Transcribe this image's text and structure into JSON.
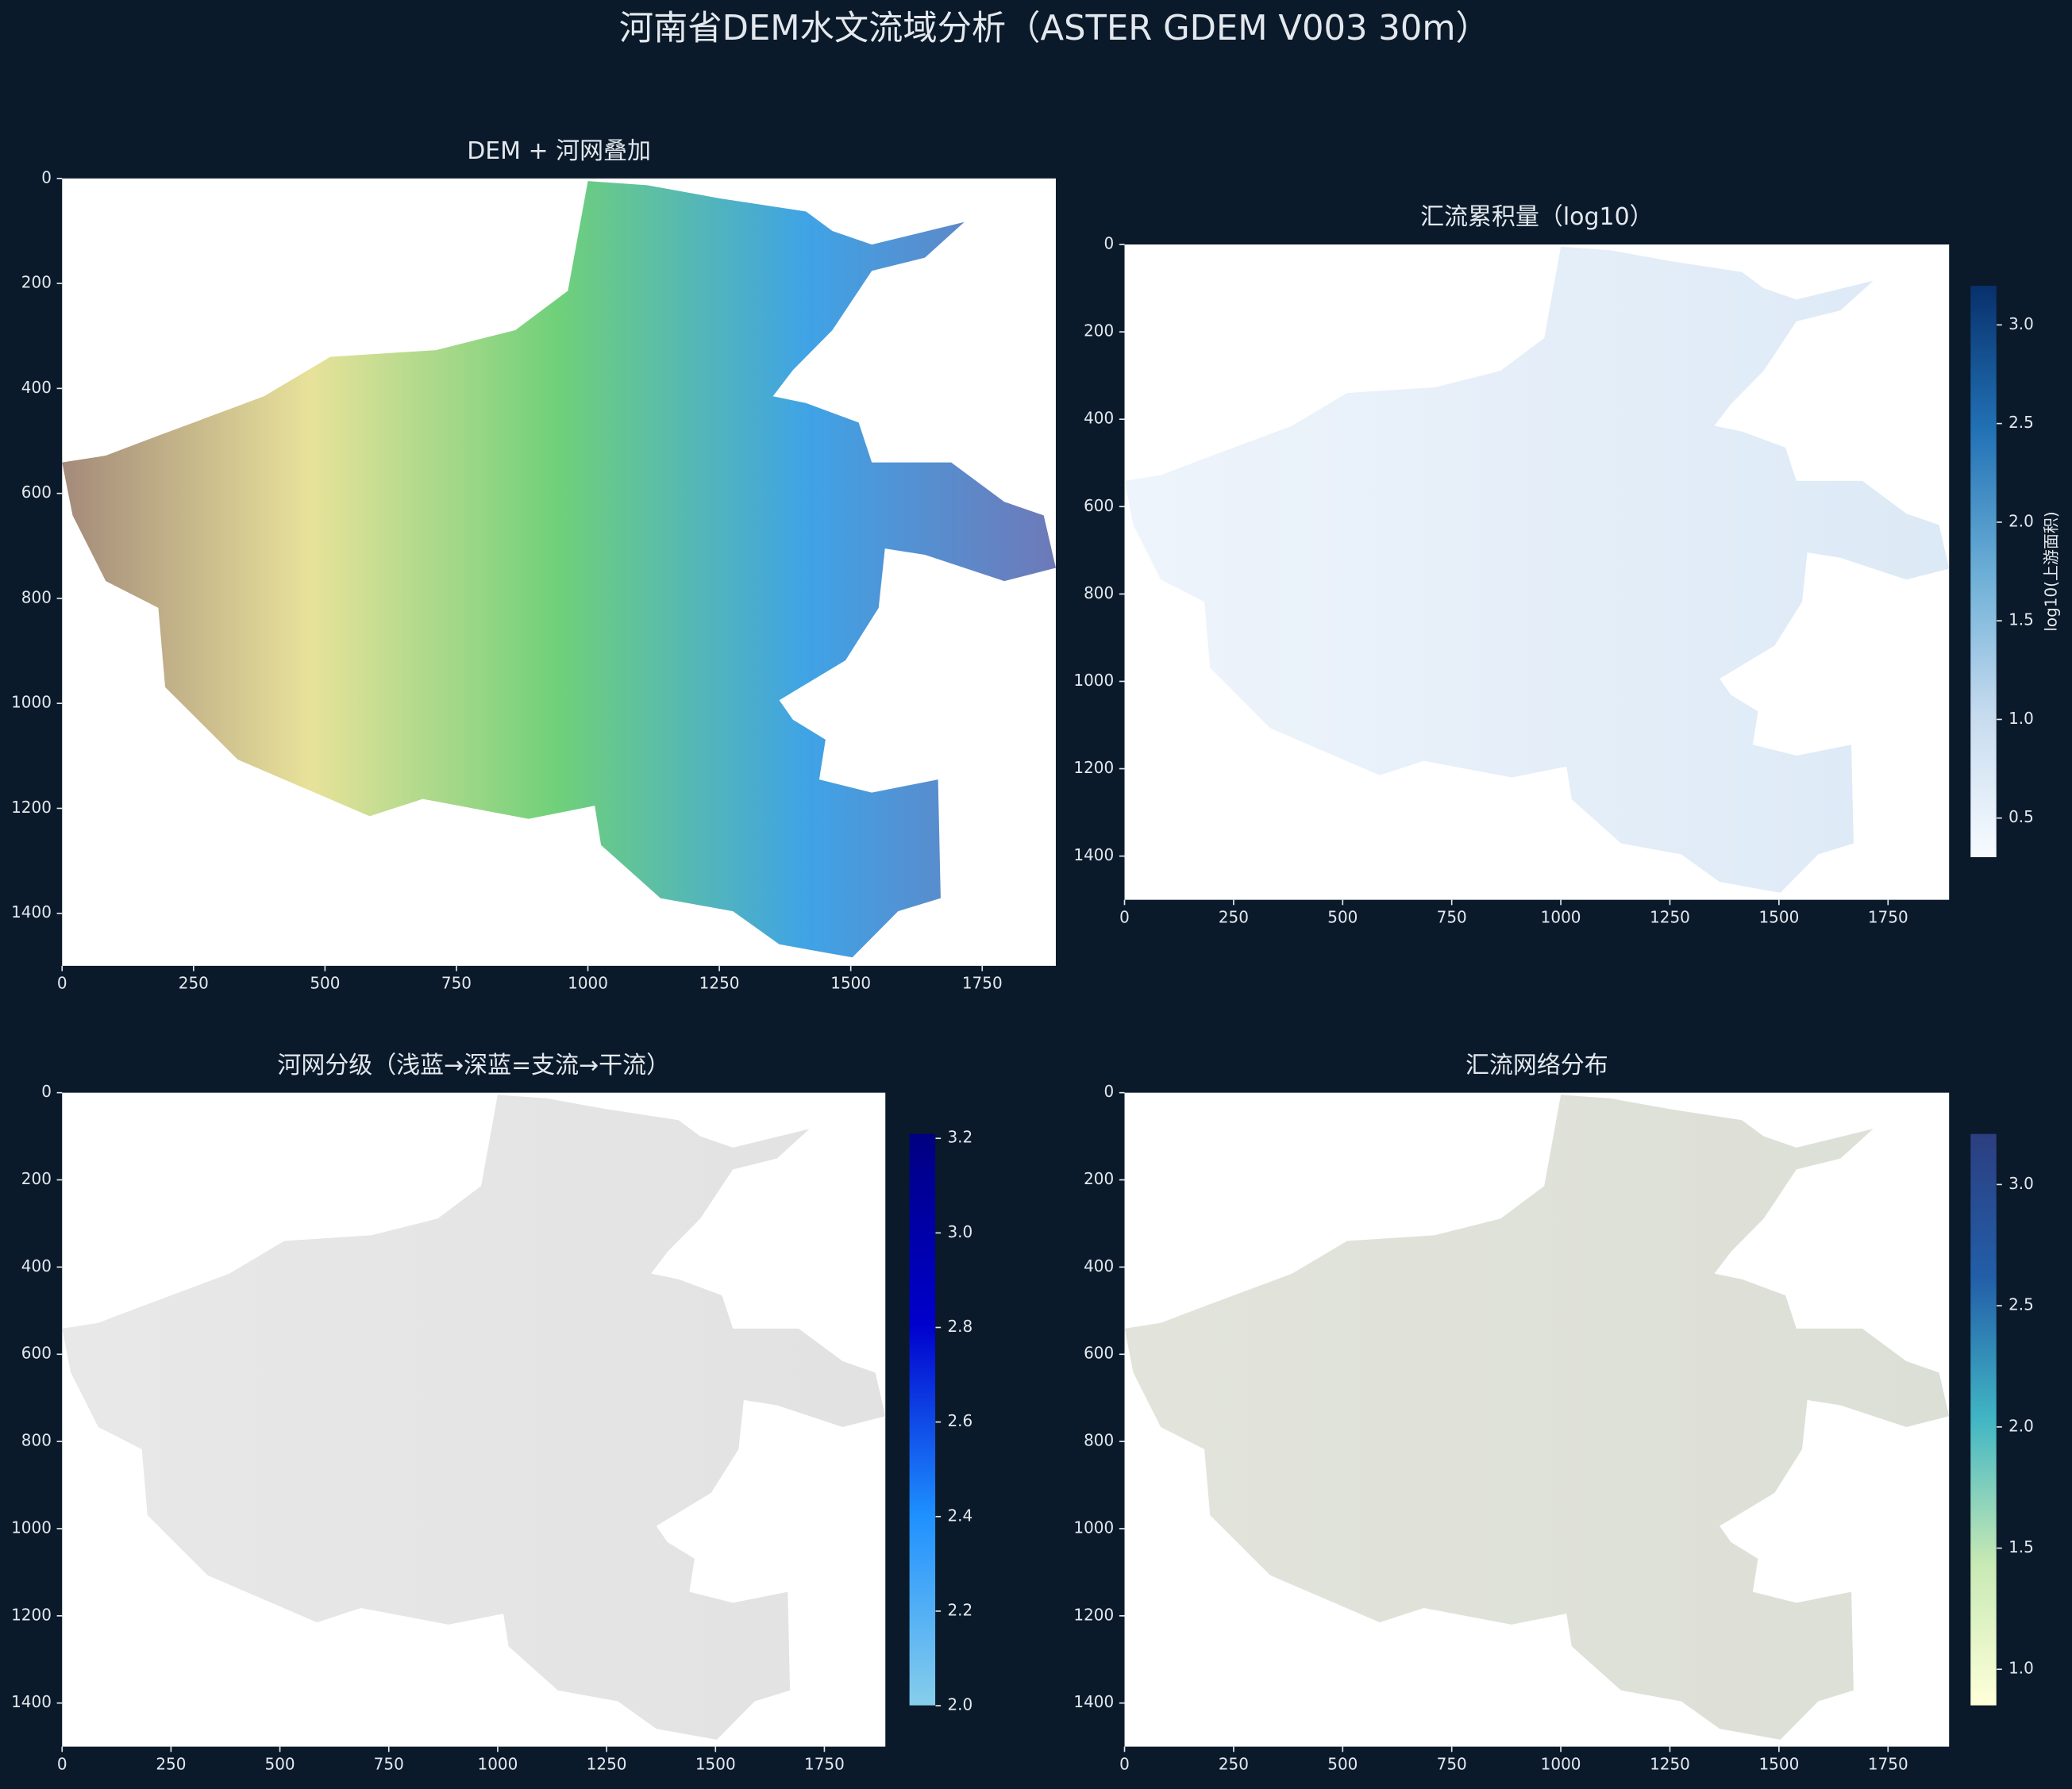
{
  "title": "河南省DEM水文流域分析（ASTER GDEM V003 30m）",
  "chart_data": [
    {
      "type": "image",
      "title": "DEM + 河网叠加",
      "xlim": [
        0,
        1890
      ],
      "ylim": [
        1500,
        0
      ],
      "xticks": [
        0,
        250,
        500,
        750,
        1000,
        1250,
        1500,
        1750
      ],
      "yticks": [
        0,
        200,
        400,
        600,
        800,
        1000,
        1200,
        1400
      ],
      "colors": [
        "#a38a7a",
        "#e8e29a",
        "#6fd07a",
        "#3fa3e6",
        "#6e79b8"
      ]
    },
    {
      "type": "image",
      "title": "汇流累积量（log10）",
      "xlim": [
        0,
        1890
      ],
      "ylim": [
        1500,
        0
      ],
      "xticks": [
        0,
        250,
        500,
        750,
        1000,
        1250,
        1500,
        1750
      ],
      "yticks": [
        0,
        200,
        400,
        600,
        800,
        1000,
        1200,
        1400
      ],
      "colors": [
        "#eef4fb",
        "#dce9f6"
      ],
      "colorbar": {
        "lim": [
          0.3,
          3.2
        ],
        "label": "log10(上游面积)",
        "colors": [
          "#f7fbff",
          "#c6dbef",
          "#6baed6",
          "#2171b5",
          "#08306b"
        ],
        "ticks": [
          0.5,
          {
            "value": 1,
            "label": "1.0"
          },
          1.5,
          {
            "value": 2,
            "label": "2.0"
          },
          2.5,
          {
            "value": 3,
            "label": "3.0"
          }
        ]
      }
    },
    {
      "type": "image",
      "title": "河网分级（浅蓝→深蓝=支流→干流）",
      "xlim": [
        0,
        1890
      ],
      "ylim": [
        1500,
        0
      ],
      "xticks": [
        0,
        250,
        500,
        750,
        1000,
        1250,
        1500,
        1750
      ],
      "yticks": [
        0,
        200,
        400,
        600,
        800,
        1000,
        1200,
        1400
      ],
      "colors": [
        "#e8e8e8",
        "#e2e2e2"
      ],
      "colorbar": {
        "lim": [
          2,
          3.21
        ],
        "colors": [
          "#87ceeb",
          "#1e90ff",
          "#0000cd",
          "#000080"
        ],
        "ticks": [
          {
            "value": 2,
            "label": "2.0"
          },
          2.2,
          2.4,
          2.6,
          2.8,
          {
            "value": 3,
            "label": "3.0"
          },
          3.2
        ]
      }
    },
    {
      "type": "image",
      "title": "汇流网络分布",
      "xlim": [
        0,
        1890
      ],
      "ylim": [
        1500,
        0
      ],
      "xticks": [
        0,
        250,
        500,
        750,
        1000,
        1250,
        1500,
        1750
      ],
      "yticks": [
        0,
        200,
        400,
        600,
        800,
        1000,
        1200,
        1400
      ],
      "colors": [
        "#e2e4dc",
        "#dcdfd6"
      ],
      "colorbar": {
        "lim": [
          0.85,
          3.21
        ],
        "colors": [
          "#ffffd9",
          "#c7e9b4",
          "#41b6c4",
          "#225ea8",
          "#2c3e80"
        ],
        "ticks": [
          {
            "value": 1,
            "label": "1.0"
          },
          1.5,
          {
            "value": 2,
            "label": "2.0"
          },
          2.5,
          {
            "value": 3,
            "label": "3.0"
          }
        ]
      }
    }
  ]
}
